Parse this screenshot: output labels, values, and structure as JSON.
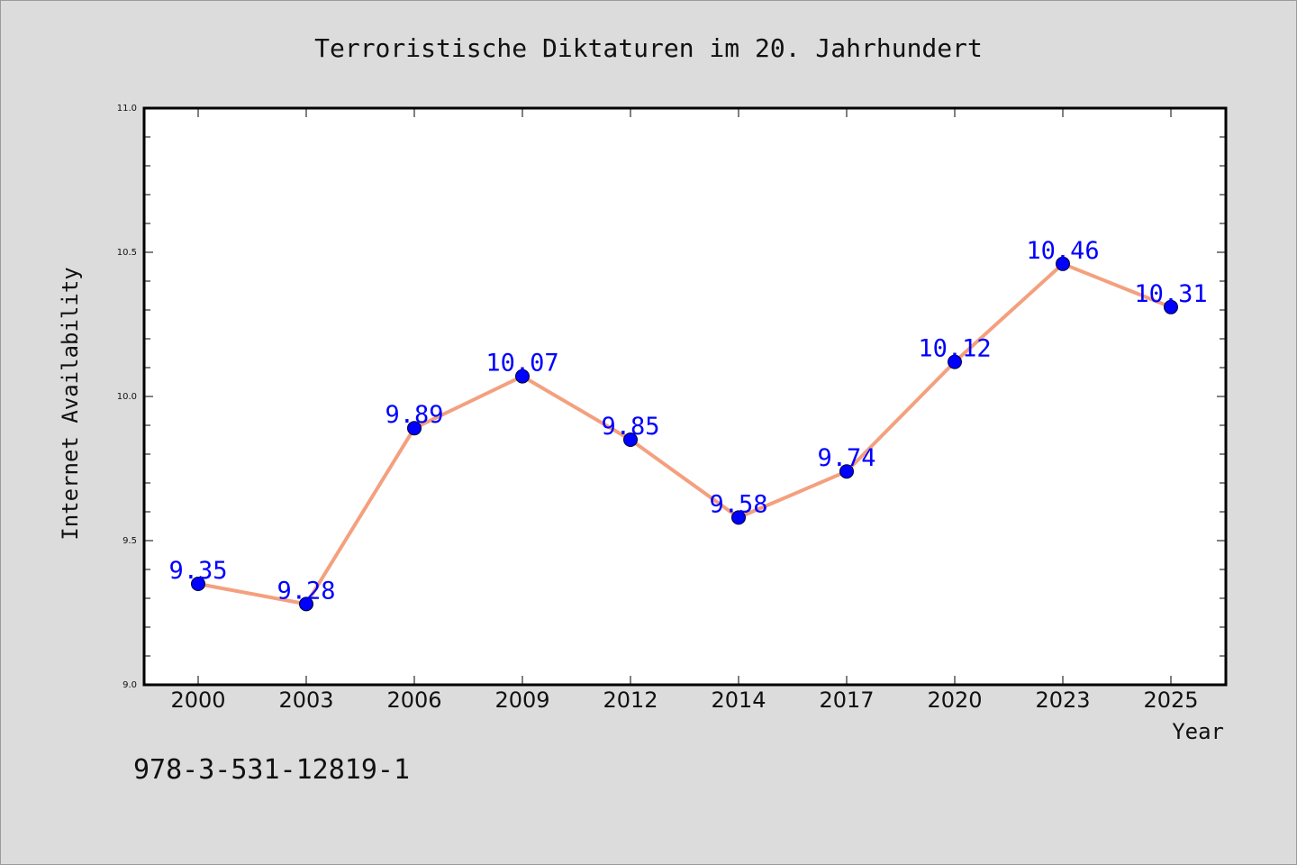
{
  "chart_data": {
    "type": "line",
    "title": "Terroristische Diktaturen im 20. Jahrhundert",
    "xlabel": "Year",
    "ylabel": "Internet Availability",
    "categories": [
      "2000",
      "2003",
      "2006",
      "2009",
      "2012",
      "2014",
      "2017",
      "2020",
      "2023",
      "2025"
    ],
    "values": [
      9.35,
      9.28,
      9.89,
      10.07,
      9.85,
      9.58,
      9.74,
      10.12,
      10.46,
      10.31
    ],
    "data_labels": [
      "9.35",
      "9.28",
      "9.89",
      "10.07",
      "9.85",
      "9.58",
      "9.74",
      "10.12",
      "10.46",
      "10.31"
    ],
    "ylim": [
      9.0,
      11.0
    ],
    "yticks": [
      "9.0",
      "9.5",
      "10.0",
      "10.5",
      "11.0"
    ],
    "grid": false,
    "line_color": "#f4a07e",
    "marker_color": "#0000ff",
    "label_color": "#0000ff"
  },
  "caption": "978-3-531-12819-1"
}
